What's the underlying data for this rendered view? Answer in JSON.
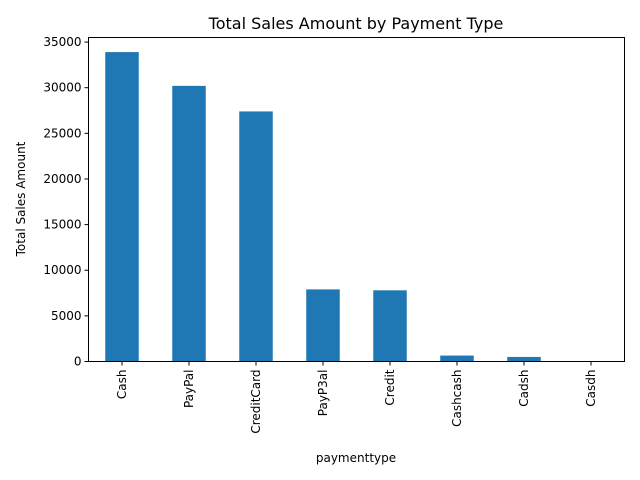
{
  "chart_data": {
    "type": "bar",
    "title": "Total Sales Amount by Payment Type",
    "xlabel": "paymenttype",
    "ylabel": "Total Sales Amount",
    "categories": [
      "Cash",
      "PayPal",
      "CreditCard",
      "PayP3al",
      "Credit",
      "Cashcash",
      "Cadsh",
      "Casdh"
    ],
    "values": [
      33900,
      30200,
      27400,
      7900,
      7800,
      650,
      500,
      30
    ],
    "ylim": [
      0,
      35500
    ],
    "yticks": [
      0,
      5000,
      10000,
      15000,
      20000,
      25000,
      30000,
      35000
    ],
    "bar_color": "#1f77b4",
    "grid": false,
    "legend": "none"
  }
}
